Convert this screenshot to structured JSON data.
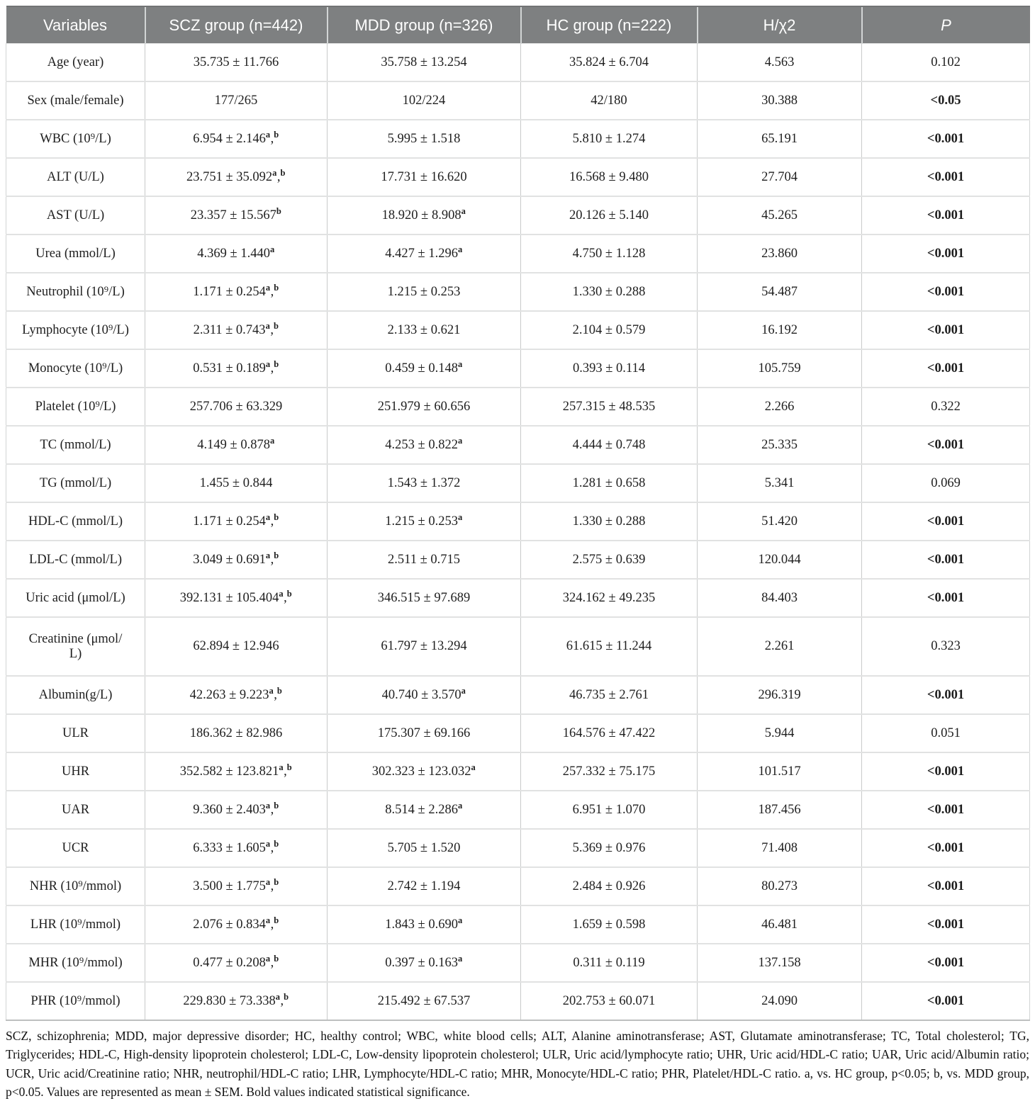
{
  "colors": {
    "header_bg": "#7e8081",
    "header_text": "#ffffff",
    "grid_vertical": "#c8caca",
    "grid_horizontal": "#e1e2e2",
    "body_text": "#1e1e1e"
  },
  "table": {
    "headers": [
      {
        "label": "Variables"
      },
      {
        "label": "SCZ group (n=442)"
      },
      {
        "label": "MDD group (n=326)"
      },
      {
        "label": "HC group (n=222)"
      },
      {
        "label": "H/χ2"
      },
      {
        "label": "P",
        "italic": true
      }
    ],
    "rows": [
      {
        "label": "Age (year)",
        "scz": {
          "v": "35.735 ± 11.766"
        },
        "mdd": {
          "v": "35.758 ± 13.254"
        },
        "hc": {
          "v": "35.824 ± 6.704"
        },
        "h": "4.563",
        "p": "0.102",
        "p_bold": false
      },
      {
        "label": "Sex (male/female)",
        "scz": {
          "v": "177/265"
        },
        "mdd": {
          "v": "102/224"
        },
        "hc": {
          "v": "42/180"
        },
        "h": "30.388",
        "p": "<0.05",
        "p_bold": true
      },
      {
        "label": "WBC (10⁹/L)",
        "scz": {
          "v": "6.954 ± 2.146",
          "sup": "a,b"
        },
        "mdd": {
          "v": "5.995 ± 1.518"
        },
        "hc": {
          "v": "5.810 ± 1.274"
        },
        "h": "65.191",
        "p": "<0.001",
        "p_bold": true
      },
      {
        "label": "ALT (U/L)",
        "scz": {
          "v": "23.751 ± 35.092",
          "sup": "a,b"
        },
        "mdd": {
          "v": "17.731 ± 16.620"
        },
        "hc": {
          "v": "16.568 ± 9.480"
        },
        "h": "27.704",
        "p": "<0.001",
        "p_bold": true
      },
      {
        "label": "AST (U/L)",
        "scz": {
          "v": "23.357 ± 15.567",
          "sup": "b"
        },
        "mdd": {
          "v": "18.920 ± 8.908",
          "sup": "a"
        },
        "hc": {
          "v": "20.126 ± 5.140"
        },
        "h": "45.265",
        "p": "<0.001",
        "p_bold": true
      },
      {
        "label": "Urea (mmol/L)",
        "scz": {
          "v": "4.369 ± 1.440",
          "sup": "a"
        },
        "mdd": {
          "v": "4.427 ± 1.296",
          "sup": "a"
        },
        "hc": {
          "v": "4.750 ± 1.128"
        },
        "h": "23.860",
        "p": "<0.001",
        "p_bold": true
      },
      {
        "label": "Neutrophil (10⁹/L)",
        "scz": {
          "v": "1.171 ± 0.254",
          "sup": "a,b"
        },
        "mdd": {
          "v": "1.215 ± 0.253"
        },
        "hc": {
          "v": "1.330 ± 0.288"
        },
        "h": "54.487",
        "p": "<0.001",
        "p_bold": true
      },
      {
        "label": "Lymphocyte (10⁹/L)",
        "scz": {
          "v": "2.311 ± 0.743",
          "sup": "a,b"
        },
        "mdd": {
          "v": "2.133 ± 0.621"
        },
        "hc": {
          "v": "2.104 ± 0.579"
        },
        "h": "16.192",
        "p": "<0.001",
        "p_bold": true
      },
      {
        "label": "Monocyte (10⁹/L)",
        "scz": {
          "v": "0.531 ± 0.189",
          "sup": "a,b"
        },
        "mdd": {
          "v": "0.459 ± 0.148",
          "sup": "a"
        },
        "hc": {
          "v": "0.393 ± 0.114"
        },
        "h": "105.759",
        "p": "<0.001",
        "p_bold": true
      },
      {
        "label": "Platelet (10⁹/L)",
        "scz": {
          "v": "257.706 ± 63.329"
        },
        "mdd": {
          "v": "251.979 ± 60.656"
        },
        "hc": {
          "v": "257.315 ± 48.535"
        },
        "h": "2.266",
        "p": "0.322",
        "p_bold": false
      },
      {
        "label": "TC (mmol/L)",
        "scz": {
          "v": "4.149 ± 0.878",
          "sup": "a"
        },
        "mdd": {
          "v": "4.253 ± 0.822",
          "sup": "a"
        },
        "hc": {
          "v": "4.444 ± 0.748"
        },
        "h": "25.335",
        "p": "<0.001",
        "p_bold": true
      },
      {
        "label": "TG (mmol/L)",
        "scz": {
          "v": "1.455 ± 0.844"
        },
        "mdd": {
          "v": "1.543 ± 1.372"
        },
        "hc": {
          "v": "1.281 ± 0.658"
        },
        "h": "5.341",
        "p": "0.069",
        "p_bold": false
      },
      {
        "label": "HDL-C (mmol/L)",
        "scz": {
          "v": "1.171 ± 0.254",
          "sup": "a,b"
        },
        "mdd": {
          "v": "1.215 ± 0.253",
          "sup": "a"
        },
        "hc": {
          "v": "1.330 ± 0.288"
        },
        "h": "51.420",
        "p": "<0.001",
        "p_bold": true
      },
      {
        "label": "LDL-C (mmol/L)",
        "scz": {
          "v": "3.049 ± 0.691",
          "sup": "a,b"
        },
        "mdd": {
          "v": "2.511 ± 0.715"
        },
        "hc": {
          "v": "2.575 ± 0.639"
        },
        "h": "120.044",
        "p": "<0.001",
        "p_bold": true
      },
      {
        "label": "Uric acid (μmol/L)",
        "scz": {
          "v": "392.131 ± 105.404",
          "sup": "a,b"
        },
        "mdd": {
          "v": "346.515 ± 97.689"
        },
        "hc": {
          "v": "324.162 ± 49.235"
        },
        "h": "84.403",
        "p": "<0.001",
        "p_bold": true
      },
      {
        "label": "Creatinine (μmol/L)",
        "label_lines": [
          "Creatinine (μmol/",
          "L)"
        ],
        "tall": true,
        "scz": {
          "v": "62.894 ± 12.946"
        },
        "mdd": {
          "v": "61.797 ± 13.294"
        },
        "hc": {
          "v": "61.615 ± 11.244"
        },
        "h": "2.261",
        "p": "0.323",
        "p_bold": false
      },
      {
        "label": "Albumin(g/L)",
        "scz": {
          "v": "42.263 ± 9.223",
          "sup": "a,b"
        },
        "mdd": {
          "v": "40.740 ± 3.570",
          "sup": "a"
        },
        "hc": {
          "v": "46.735 ± 2.761"
        },
        "h": "296.319",
        "p": "<0.001",
        "p_bold": true
      },
      {
        "label": "ULR",
        "scz": {
          "v": "186.362 ± 82.986"
        },
        "mdd": {
          "v": "175.307 ± 69.166"
        },
        "hc": {
          "v": "164.576 ± 47.422"
        },
        "h": "5.944",
        "p": "0.051",
        "p_bold": false
      },
      {
        "label": "UHR",
        "scz": {
          "v": "352.582 ± 123.821",
          "sup": "a,b"
        },
        "mdd": {
          "v": "302.323 ± 123.032",
          "sup": "a"
        },
        "hc": {
          "v": "257.332 ± 75.175"
        },
        "h": "101.517",
        "p": "<0.001",
        "p_bold": true
      },
      {
        "label": "UAR",
        "scz": {
          "v": "9.360 ± 2.403",
          "sup": "a,b"
        },
        "mdd": {
          "v": "8.514 ± 2.286",
          "sup": "a"
        },
        "hc": {
          "v": "6.951 ± 1.070"
        },
        "h": "187.456",
        "p": "<0.001",
        "p_bold": true
      },
      {
        "label": "UCR",
        "scz": {
          "v": "6.333 ± 1.605",
          "sup": "a,b"
        },
        "mdd": {
          "v": "5.705 ± 1.520"
        },
        "hc": {
          "v": "5.369 ± 0.976"
        },
        "h": "71.408",
        "p": "<0.001",
        "p_bold": true
      },
      {
        "label": "NHR (10⁹/mmol)",
        "scz": {
          "v": "3.500 ± 1.775",
          "sup": "a,b"
        },
        "mdd": {
          "v": "2.742 ± 1.194"
        },
        "hc": {
          "v": "2.484 ± 0.926"
        },
        "h": "80.273",
        "p": "<0.001",
        "p_bold": true
      },
      {
        "label": "LHR (10⁹/mmol)",
        "scz": {
          "v": "2.076 ± 0.834",
          "sup": "a,b"
        },
        "mdd": {
          "v": "1.843 ± 0.690",
          "sup": "a"
        },
        "hc": {
          "v": "1.659 ± 0.598"
        },
        "h": "46.481",
        "p": "<0.001",
        "p_bold": true
      },
      {
        "label": "MHR (10⁹/mmol)",
        "scz": {
          "v": "0.477 ± 0.208",
          "sup": "a,b"
        },
        "mdd": {
          "v": "0.397 ± 0.163",
          "sup": "a"
        },
        "hc": {
          "v": "0.311 ± 0.119"
        },
        "h": "137.158",
        "p": "<0.001",
        "p_bold": true
      },
      {
        "label": "PHR (10⁹/mmol)",
        "scz": {
          "v": "229.830 ± 73.338",
          "sup": "a,b"
        },
        "mdd": {
          "v": "215.492 ± 67.537"
        },
        "hc": {
          "v": "202.753 ± 60.071"
        },
        "h": "24.090",
        "p": "<0.001",
        "p_bold": true
      }
    ]
  },
  "footnote": "SCZ, schizophrenia; MDD, major depressive disorder; HC, healthy control; WBC, white blood cells; ALT, Alanine aminotransferase; AST, Glutamate aminotransferase; TC, Total cholesterol; TG, Triglycerides; HDL-C, High-density lipoprotein cholesterol; LDL-C, Low-density lipoprotein cholesterol; ULR, Uric acid/lymphocyte ratio; UHR, Uric acid/HDL-C ratio; UAR, Uric acid/Albumin ratio; UCR, Uric acid/Creatinine ratio; NHR, neutrophil/HDL-C ratio; LHR, Lymphocyte/HDL-C ratio; MHR, Monocyte/HDL-C ratio; PHR, Platelet/HDL-C ratio. a, vs. HC group, p<0.05; b, vs. MDD group, p<0.05. Values are represented as mean ± SEM. Bold values indicated statistical significance."
}
